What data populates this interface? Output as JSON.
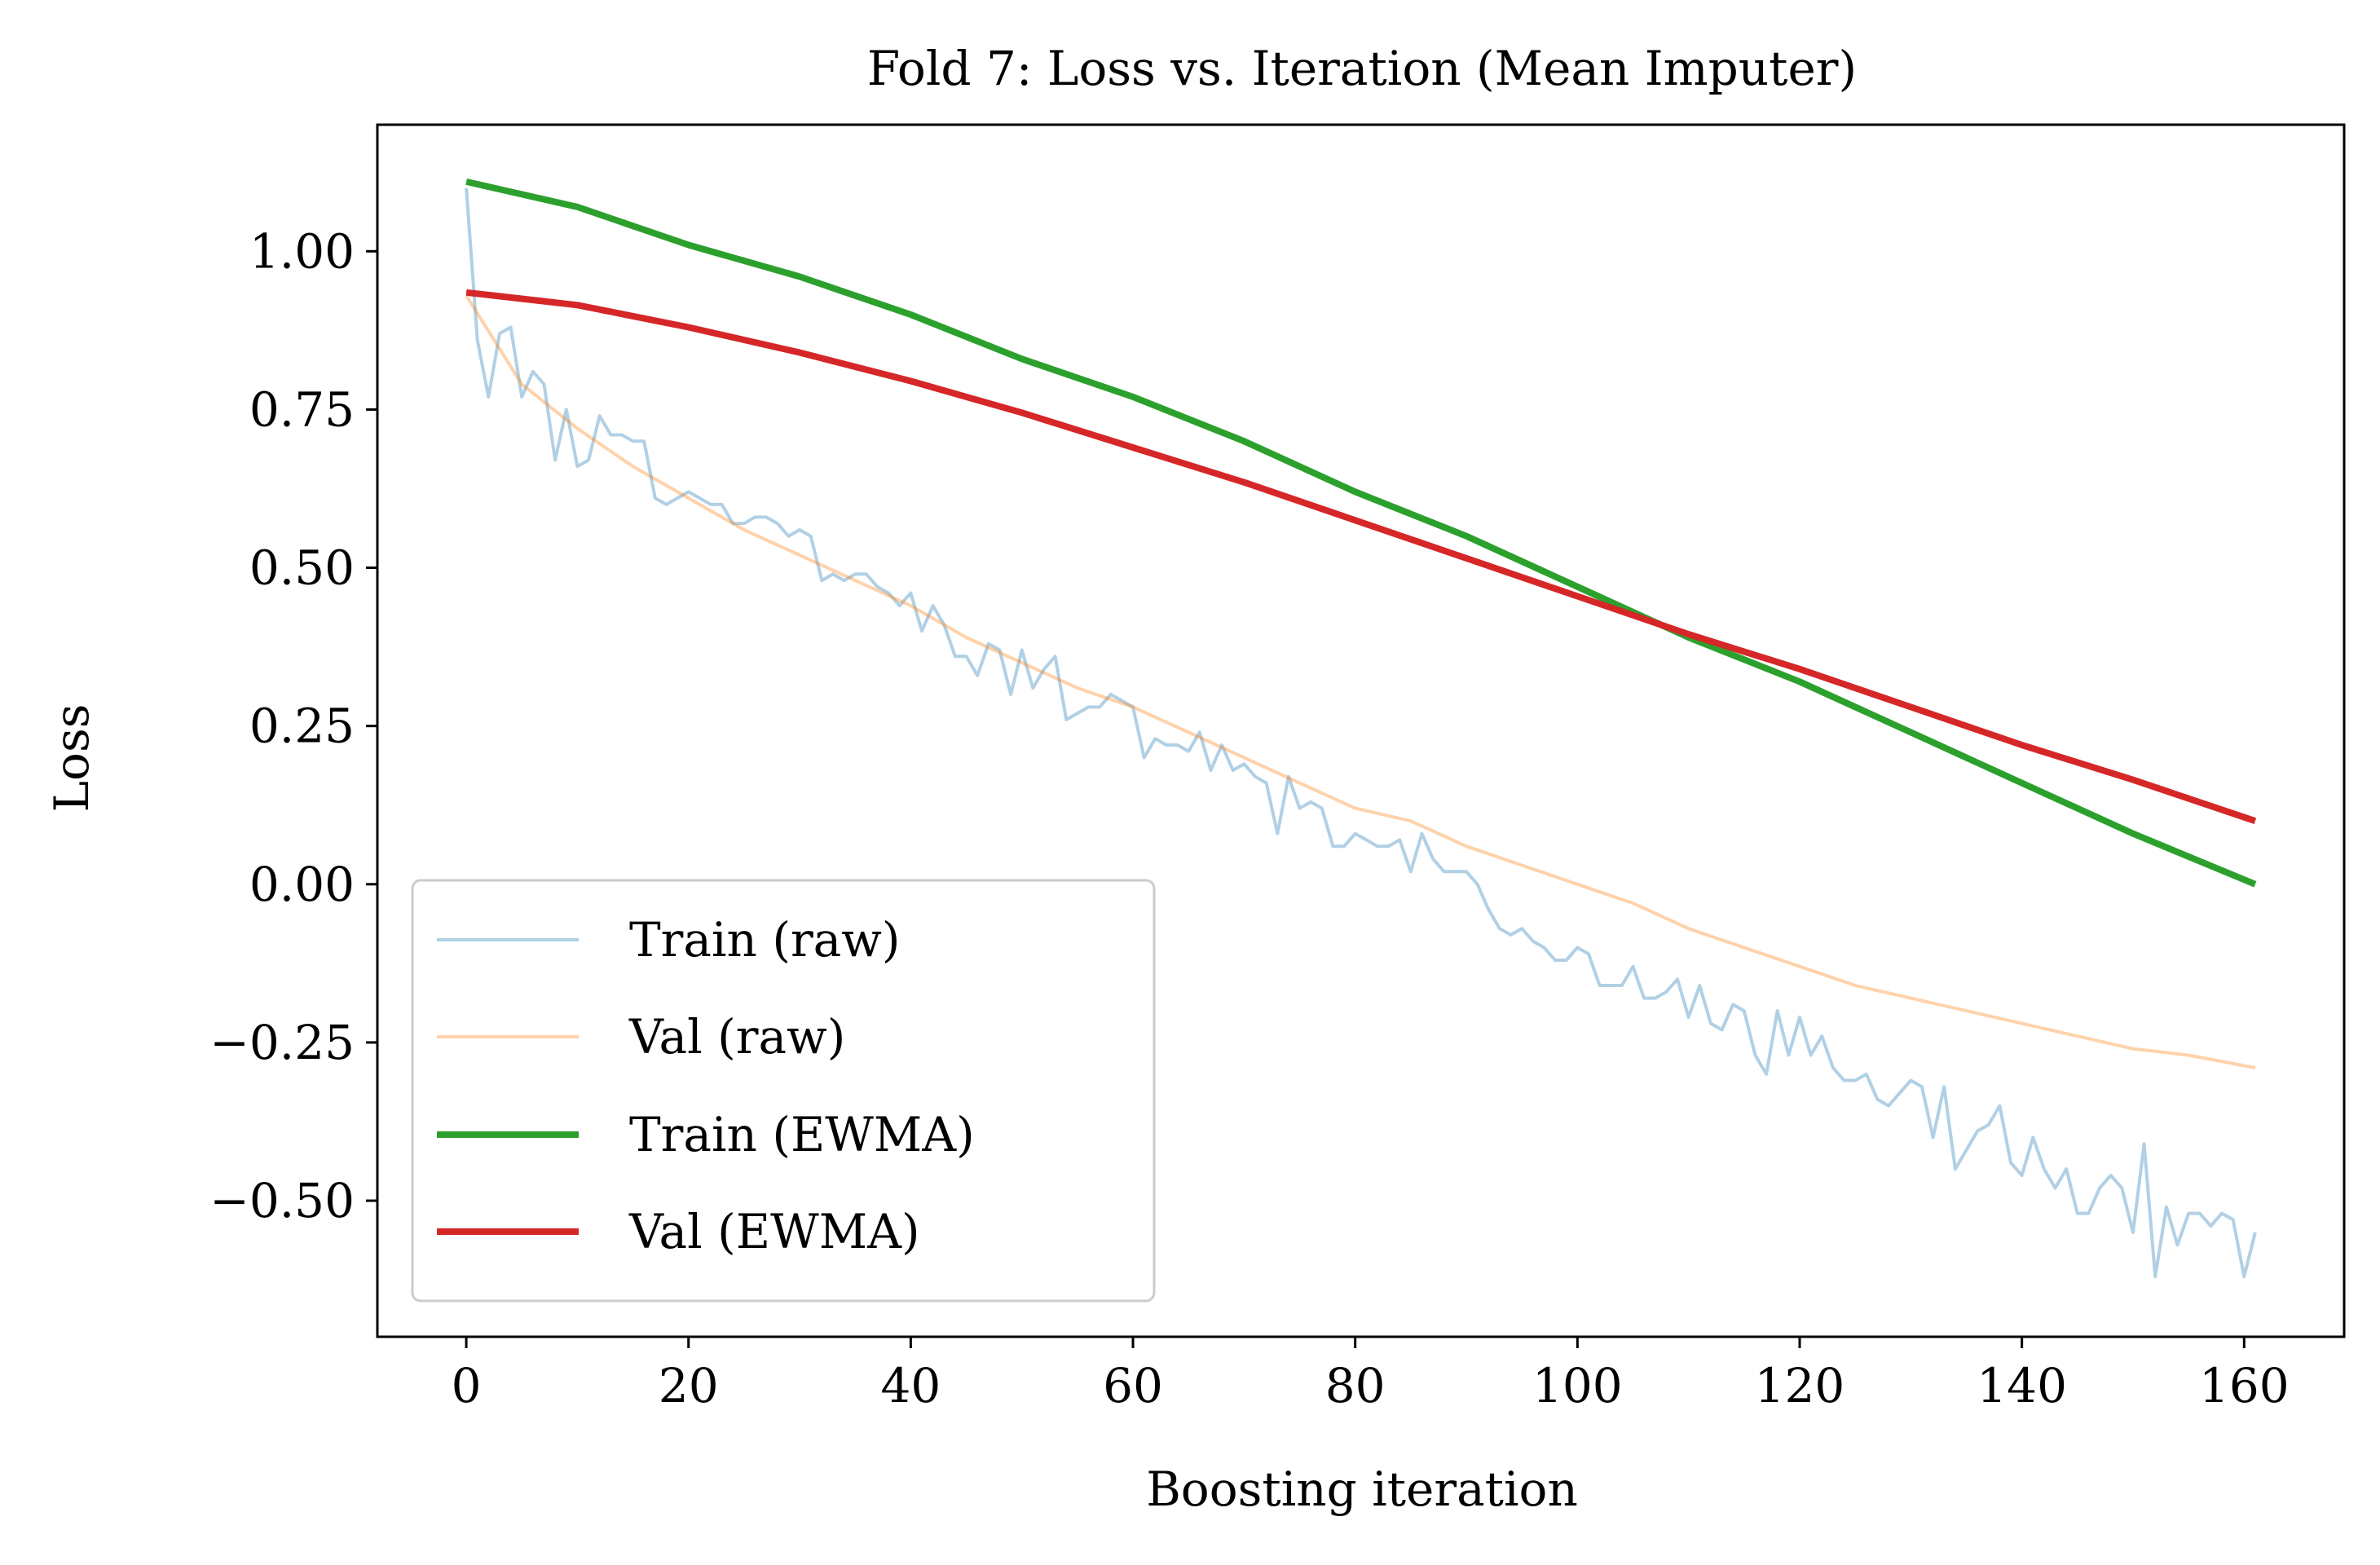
{
  "chart_data": {
    "type": "line",
    "title": "Fold 7: Loss vs. Iteration (Mean Imputer)",
    "xlabel": "Boosting iteration",
    "ylabel": "Loss",
    "xlim": [
      -8,
      169
    ],
    "ylim": [
      -0.715,
      1.2
    ],
    "xticks": [
      0,
      20,
      40,
      60,
      80,
      100,
      120,
      140,
      160
    ],
    "xtick_labels": [
      "0",
      "20",
      "40",
      "60",
      "80",
      "100",
      "120",
      "140",
      "160"
    ],
    "yticks": [
      1.0,
      0.75,
      0.5,
      0.25,
      0.0,
      -0.25,
      -0.5
    ],
    "ytick_labels": [
      "1.00",
      "0.75",
      "0.50",
      "0.25",
      "0.00",
      "−0.25",
      "−0.50"
    ],
    "grid": false,
    "legend_position": "lower-left",
    "series": [
      {
        "name": "Train (raw)",
        "color": "#1f77b4",
        "opacity": 0.35,
        "width": "thin",
        "x": [
          0,
          1,
          2,
          3,
          4,
          5,
          6,
          7,
          8,
          9,
          10,
          11,
          12,
          13,
          14,
          15,
          16,
          17,
          18,
          19,
          20,
          21,
          22,
          23,
          24,
          25,
          26,
          27,
          28,
          29,
          30,
          31,
          32,
          33,
          34,
          35,
          36,
          37,
          38,
          39,
          40,
          41,
          42,
          43,
          44,
          45,
          46,
          47,
          48,
          49,
          50,
          51,
          52,
          53,
          54,
          55,
          56,
          57,
          58,
          59,
          60,
          61,
          62,
          63,
          64,
          65,
          66,
          67,
          68,
          69,
          70,
          71,
          72,
          73,
          74,
          75,
          76,
          77,
          78,
          79,
          80,
          81,
          82,
          83,
          84,
          85,
          86,
          87,
          88,
          89,
          90,
          91,
          92,
          93,
          94,
          95,
          96,
          97,
          98,
          99,
          100,
          101,
          102,
          103,
          104,
          105,
          106,
          107,
          108,
          109,
          110,
          111,
          112,
          113,
          114,
          115,
          116,
          117,
          118,
          119,
          120,
          121,
          122,
          123,
          124,
          125,
          126,
          127,
          128,
          129,
          130,
          131,
          132,
          133,
          134,
          135,
          136,
          137,
          138,
          139,
          140,
          141,
          142,
          143,
          144,
          145,
          146,
          147,
          148,
          149,
          150,
          151,
          152,
          153,
          154,
          155,
          156,
          157,
          158,
          159,
          160,
          161
        ],
        "y": [
          1.1,
          0.86,
          0.77,
          0.87,
          0.88,
          0.77,
          0.81,
          0.79,
          0.67,
          0.75,
          0.66,
          0.67,
          0.74,
          0.71,
          0.71,
          0.7,
          0.7,
          0.61,
          0.6,
          0.61,
          0.62,
          0.61,
          0.6,
          0.6,
          0.57,
          0.57,
          0.58,
          0.58,
          0.57,
          0.55,
          0.56,
          0.55,
          0.48,
          0.49,
          0.48,
          0.49,
          0.49,
          0.47,
          0.46,
          0.44,
          0.46,
          0.4,
          0.44,
          0.41,
          0.36,
          0.36,
          0.33,
          0.38,
          0.37,
          0.3,
          0.37,
          0.31,
          0.34,
          0.36,
          0.26,
          0.27,
          0.28,
          0.28,
          0.3,
          0.29,
          0.28,
          0.2,
          0.23,
          0.22,
          0.22,
          0.21,
          0.24,
          0.18,
          0.22,
          0.18,
          0.19,
          0.17,
          0.16,
          0.08,
          0.17,
          0.12,
          0.13,
          0.12,
          0.06,
          0.06,
          0.08,
          0.07,
          0.06,
          0.06,
          0.07,
          0.02,
          0.08,
          0.04,
          0.02,
          0.02,
          0.02,
          0.0,
          -0.04,
          -0.07,
          -0.08,
          -0.07,
          -0.09,
          -0.1,
          -0.12,
          -0.12,
          -0.1,
          -0.11,
          -0.16,
          -0.16,
          -0.16,
          -0.13,
          -0.18,
          -0.18,
          -0.17,
          -0.15,
          -0.21,
          -0.16,
          -0.22,
          -0.23,
          -0.19,
          -0.2,
          -0.27,
          -0.3,
          -0.2,
          -0.27,
          -0.21,
          -0.27,
          -0.24,
          -0.29,
          -0.31,
          -0.31,
          -0.3,
          -0.34,
          -0.35,
          -0.33,
          -0.31,
          -0.32,
          -0.4,
          -0.32,
          -0.45,
          -0.42,
          -0.39,
          -0.38,
          -0.35,
          -0.44,
          -0.46,
          -0.4,
          -0.45,
          -0.48,
          -0.45,
          -0.52,
          -0.52,
          -0.48,
          -0.46,
          -0.48,
          -0.55,
          -0.41,
          -0.62,
          -0.51,
          -0.57,
          -0.52,
          -0.52,
          -0.54,
          -0.52,
          -0.53,
          -0.62,
          -0.55
        ]
      },
      {
        "name": "Val (raw)",
        "color": "#ff7f0e",
        "opacity": 0.35,
        "width": "thin",
        "x": [
          0,
          5,
          10,
          15,
          20,
          25,
          30,
          35,
          40,
          45,
          50,
          55,
          60,
          65,
          70,
          75,
          80,
          85,
          90,
          95,
          100,
          105,
          110,
          115,
          120,
          125,
          130,
          135,
          140,
          145,
          150,
          155,
          161
        ],
        "y": [
          0.93,
          0.79,
          0.72,
          0.66,
          0.61,
          0.56,
          0.52,
          0.48,
          0.44,
          0.39,
          0.35,
          0.31,
          0.28,
          0.24,
          0.2,
          0.16,
          0.12,
          0.1,
          0.06,
          0.03,
          0.0,
          -0.03,
          -0.07,
          -0.1,
          -0.13,
          -0.16,
          -0.18,
          -0.2,
          -0.22,
          -0.24,
          -0.26,
          -0.27,
          -0.29
        ]
      },
      {
        "name": "Train (EWMA)",
        "color": "#2ca02c",
        "opacity": 1,
        "width": "thick",
        "x": [
          0,
          10,
          20,
          30,
          40,
          50,
          60,
          70,
          80,
          90,
          100,
          110,
          120,
          130,
          140,
          150,
          161
        ],
        "y": [
          1.11,
          1.07,
          1.01,
          0.96,
          0.9,
          0.83,
          0.77,
          0.7,
          0.62,
          0.55,
          0.47,
          0.39,
          0.32,
          0.24,
          0.16,
          0.08,
          0.0
        ]
      },
      {
        "name": "Val (EWMA)",
        "color": "#d62728",
        "opacity": 1,
        "width": "thick",
        "x": [
          0,
          10,
          20,
          30,
          40,
          50,
          60,
          70,
          80,
          90,
          100,
          110,
          120,
          130,
          140,
          150,
          161
        ],
        "y": [
          0.935,
          0.915,
          0.88,
          0.84,
          0.795,
          0.745,
          0.69,
          0.635,
          0.575,
          0.515,
          0.455,
          0.395,
          0.34,
          0.28,
          0.22,
          0.165,
          0.1
        ]
      }
    ]
  }
}
